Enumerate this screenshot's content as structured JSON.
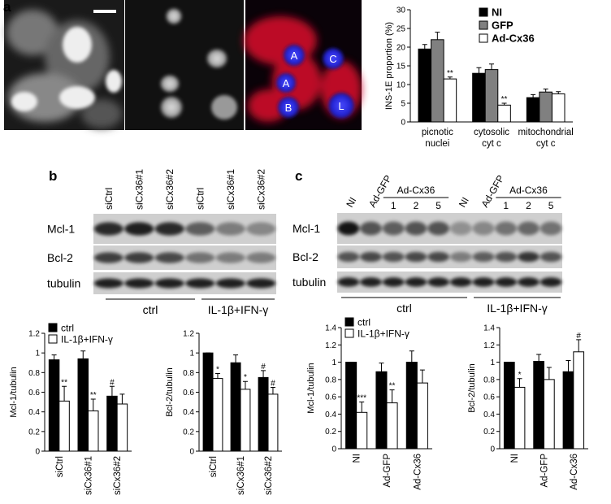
{
  "panel_labels": [
    "a",
    "b",
    "c"
  ],
  "image_labels": [
    "A",
    "C",
    "A",
    "B",
    "L"
  ],
  "blots": [
    {
      "lanes": [
        "siCtrl",
        "siCx36#1",
        "siCx36#2",
        "siCtrl",
        "siCx36#1",
        "siCx36#2"
      ],
      "rows": [
        "Mcl-1",
        "Bcl-2",
        "tubulin"
      ],
      "groups": [
        "ctrl",
        "IL-1β+IFN-γ"
      ]
    },
    {
      "lanes": [
        "NI",
        "Ad-GFP",
        "Ad-Cx36",
        "NI",
        "Ad-GFP",
        "Ad-Cx36"
      ],
      "sublanes": [
        "1",
        "2",
        "5",
        "1",
        "2",
        "5"
      ],
      "rows": [
        "Mcl-1",
        "Bcl-2",
        "tubulin"
      ],
      "groups": [
        "ctrl",
        "IL-1β+IFN-γ"
      ]
    }
  ],
  "chart_data": [
    {
      "type": "bar",
      "ylabel": "INS-1E proportion (%)",
      "categories": [
        "picnotic nuclei",
        "cytosolic cyt c",
        "mitochondrial cyt c"
      ],
      "series": [
        {
          "name": "NI",
          "color": "#000000",
          "values": [
            19.5,
            13,
            6.5
          ],
          "errors": [
            1.2,
            1.5,
            0.8
          ],
          "annotations": [
            null,
            null,
            null
          ]
        },
        {
          "name": "GFP",
          "color": "#808080",
          "values": [
            22,
            14,
            8
          ],
          "errors": [
            2,
            1.5,
            0.8
          ],
          "annotations": [
            null,
            null,
            null
          ]
        },
        {
          "name": "Ad-Cx36",
          "color": "#ffffff",
          "values": [
            11.5,
            4.5,
            7.5
          ],
          "errors": [
            0.5,
            0.5,
            0.6
          ],
          "annotations": [
            "**",
            "**",
            null
          ]
        }
      ],
      "ylim": [
        0,
        30
      ],
      "yticks": [
        0,
        5,
        10,
        15,
        20,
        25,
        30
      ],
      "grid": false,
      "legend": "top-right"
    },
    {
      "type": "bar",
      "ylabel": "Mcl-1/tubulin",
      "categories": [
        "siCtrl",
        "siCx36#1",
        "siCx36#2"
      ],
      "series": [
        {
          "name": "ctrl",
          "color": "#000000",
          "values": [
            0.93,
            0.94,
            0.56
          ],
          "errors": [
            0.05,
            0.08,
            0.1
          ],
          "annotations": [
            null,
            null,
            "#"
          ]
        },
        {
          "name": "IL-1β+IFN-γ",
          "color": "#ffffff",
          "values": [
            0.51,
            0.41,
            0.48
          ],
          "errors": [
            0.15,
            0.12,
            0.1
          ],
          "annotations": [
            "**",
            "**",
            null
          ]
        }
      ],
      "ylim": [
        0,
        1.2
      ],
      "yticks": [
        0,
        0.2,
        0.4,
        0.6,
        0.8,
        1,
        1.2
      ],
      "grid": false,
      "legend": "top-left"
    },
    {
      "type": "bar",
      "ylabel": "Bcl-2/tubulin",
      "categories": [
        "siCtrl",
        "siCx36#1",
        "siCx36#2"
      ],
      "series": [
        {
          "color": "#000000",
          "values": [
            1,
            0.9,
            0.75
          ],
          "errors": [
            0,
            0.08,
            0.07
          ],
          "annotations": [
            null,
            null,
            "#"
          ]
        },
        {
          "color": "#ffffff",
          "values": [
            0.74,
            0.63,
            0.58
          ],
          "errors": [
            0.05,
            0.08,
            0.07
          ],
          "annotations": [
            "*",
            "*",
            "#"
          ]
        }
      ],
      "ylim": [
        0,
        1.2
      ],
      "yticks": [
        0,
        0.2,
        0.4,
        0.6,
        0.8,
        1,
        1.2
      ],
      "grid": false
    },
    {
      "type": "bar",
      "ylabel": "Mcl-1/tubulin",
      "categories": [
        "NI",
        "Ad-GFP",
        "Ad-Cx36"
      ],
      "series": [
        {
          "name": "ctrl",
          "color": "#000000",
          "values": [
            1,
            0.89,
            1
          ],
          "errors": [
            0,
            0.1,
            0.13
          ],
          "annotations": [
            null,
            null,
            null
          ]
        },
        {
          "name": "IL-1β+IFN-γ",
          "color": "#ffffff",
          "values": [
            0.42,
            0.53,
            0.76
          ],
          "errors": [
            0.12,
            0.15,
            0.15
          ],
          "annotations": [
            "***",
            "**",
            null
          ]
        }
      ],
      "ylim": [
        0,
        1.4
      ],
      "yticks": [
        0,
        0.2,
        0.4,
        0.6,
        0.8,
        1,
        1.2,
        1.4
      ],
      "grid": false,
      "legend": "top-left"
    },
    {
      "type": "bar",
      "ylabel": "Bcl-2/tubulin",
      "categories": [
        "NI",
        "Ad-GFP",
        "Ad-Cx36"
      ],
      "series": [
        {
          "color": "#000000",
          "values": [
            1,
            1.01,
            0.89
          ],
          "errors": [
            0,
            0.08,
            0.13
          ],
          "annotations": [
            null,
            null,
            null
          ]
        },
        {
          "color": "#ffffff",
          "values": [
            0.71,
            0.8,
            1.12
          ],
          "errors": [
            0.1,
            0.14,
            0.14
          ],
          "annotations": [
            "*",
            null,
            "#"
          ]
        }
      ],
      "ylim": [
        0,
        1.4
      ],
      "yticks": [
        0,
        0.2,
        0.4,
        0.6,
        0.8,
        1,
        1.2,
        1.4
      ],
      "grid": false
    }
  ]
}
